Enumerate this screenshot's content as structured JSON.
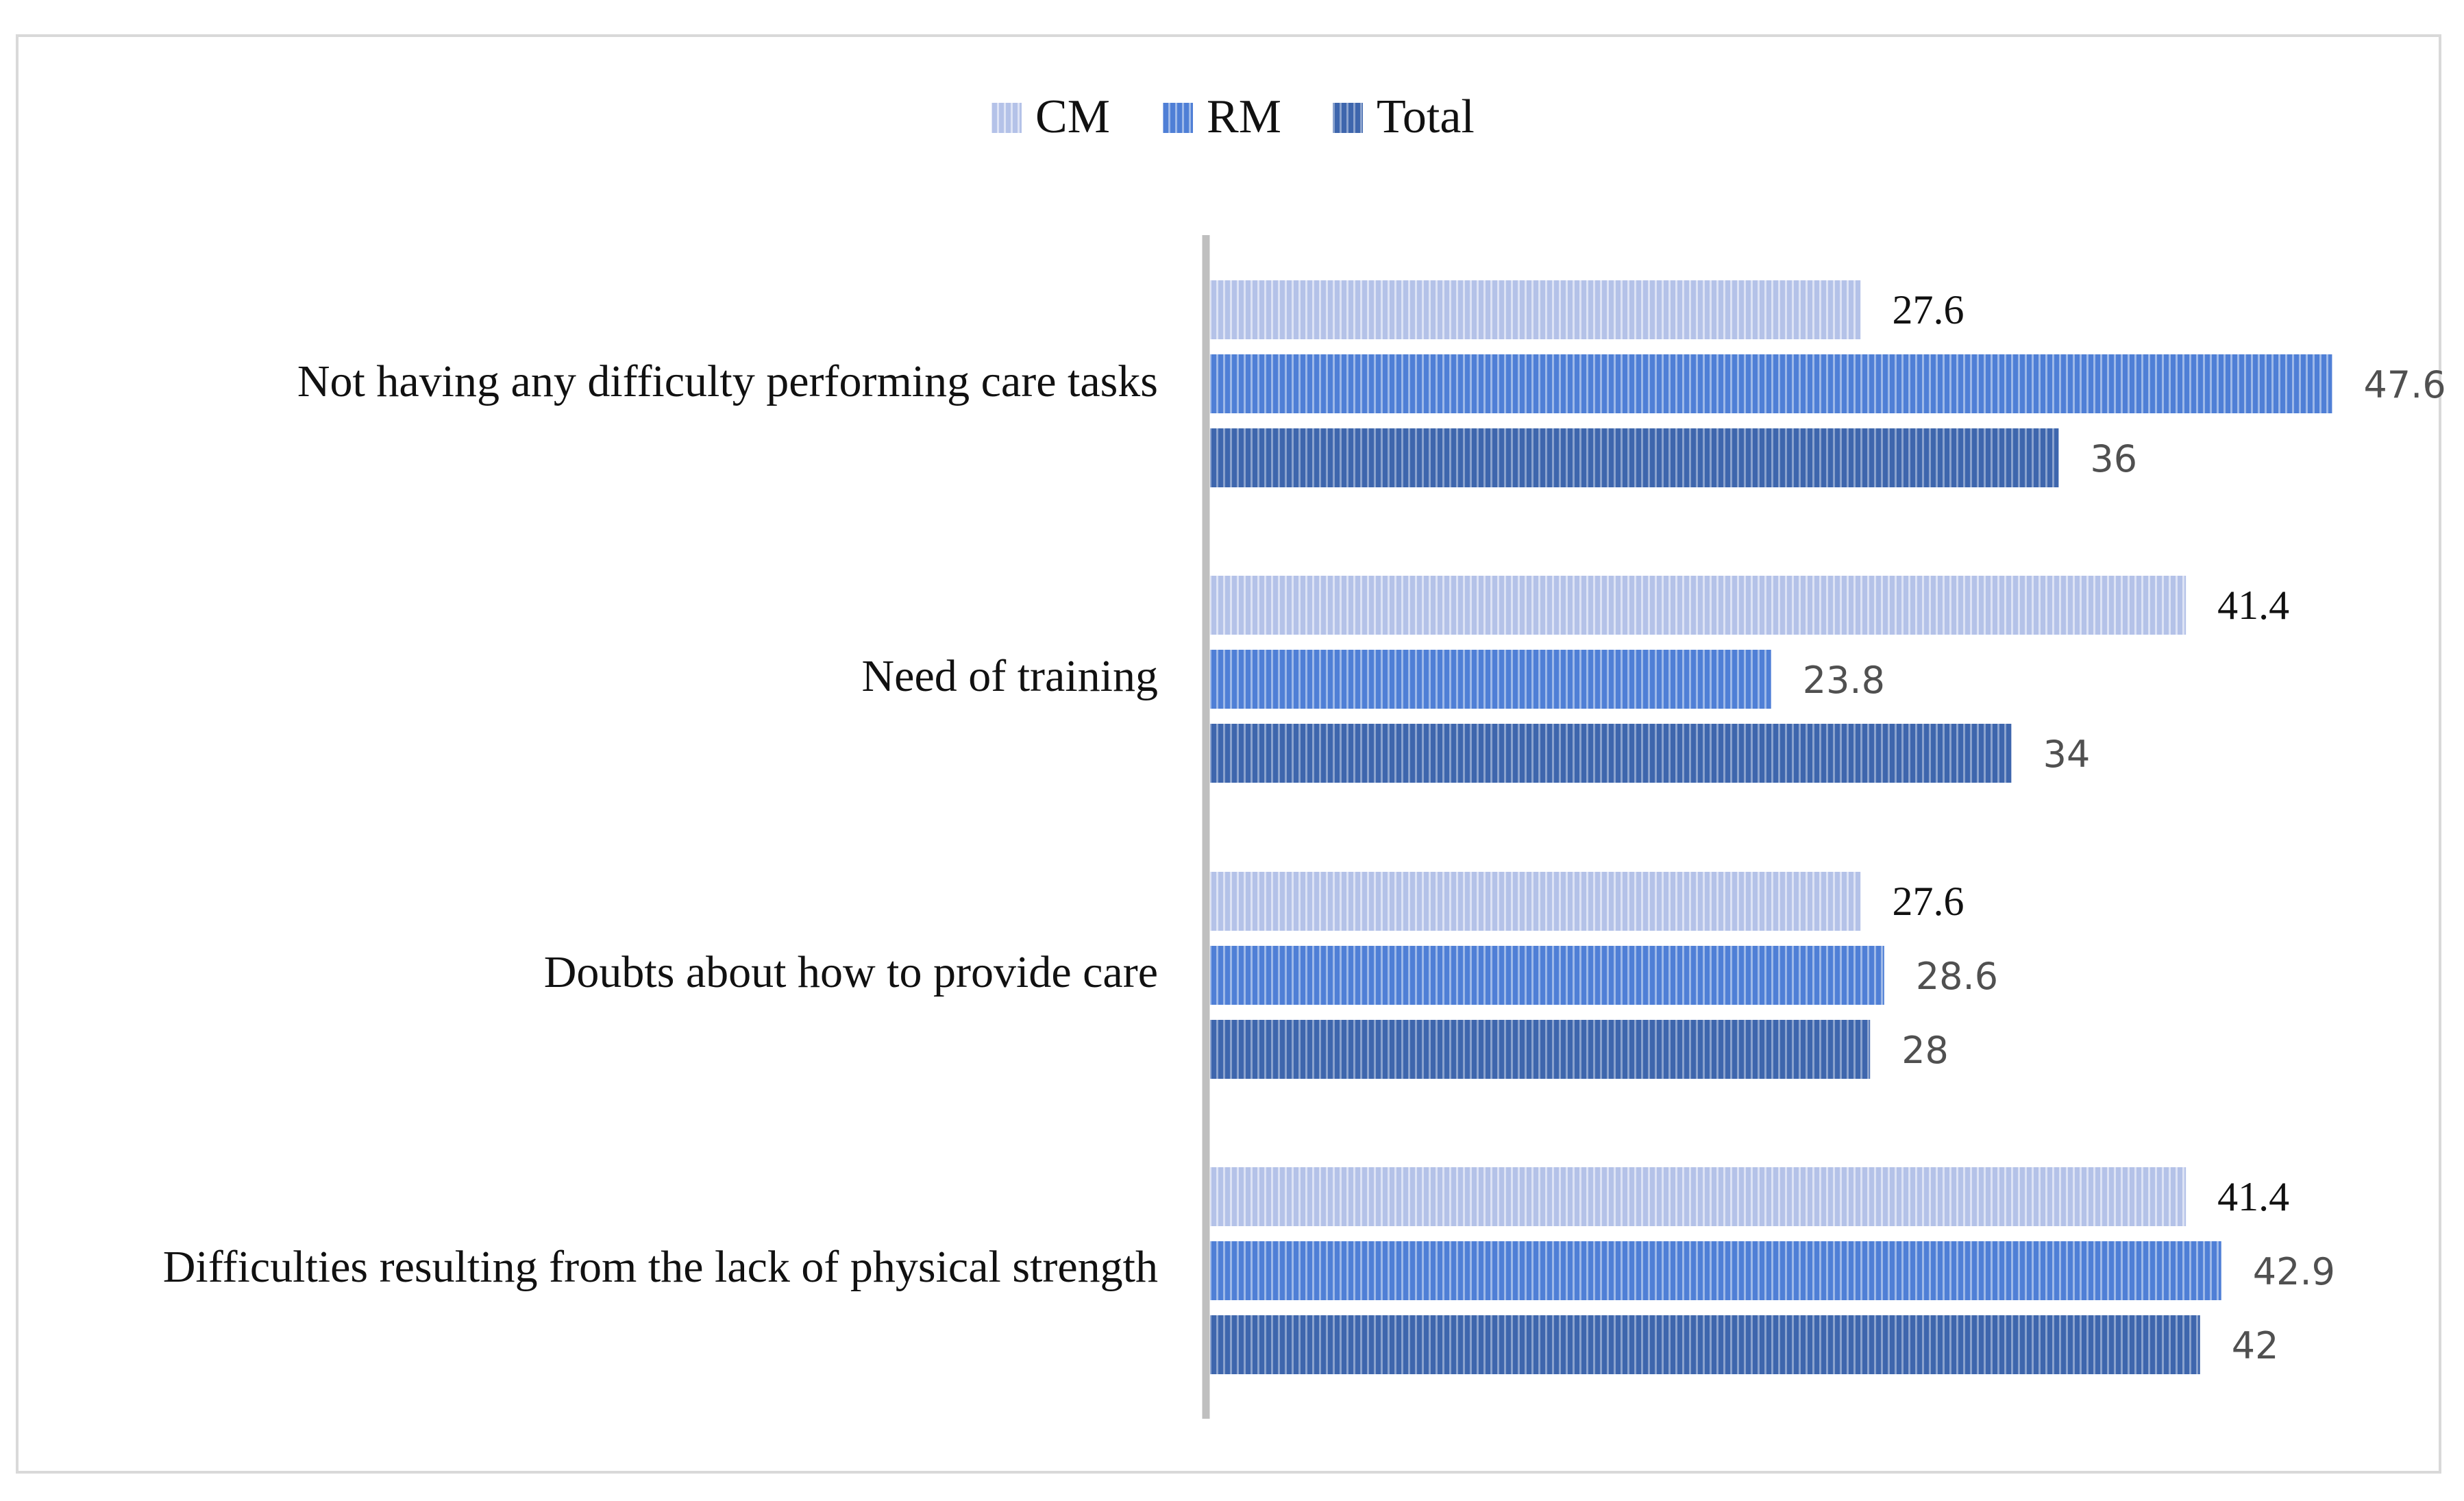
{
  "colors": {
    "CM": "#b4c2e8",
    "RM": "#4f7fd6",
    "Total": "#3e66ad",
    "axis": "#bfbfbf",
    "frame": "#d9d9d9"
  },
  "chart_data": {
    "type": "bar",
    "orientation": "horizontal",
    "title": "",
    "xlabel": "",
    "ylabel": "",
    "xlim": [
      0,
      50
    ],
    "grid": false,
    "legend_position": "top-center",
    "categories": [
      "Not having any difficulty performing care tasks",
      "Need of training",
      "Doubts about how to provide care",
      "Difficulties resulting from the lack of physical strength"
    ],
    "series": [
      {
        "name": "CM",
        "values": [
          27.6,
          41.4,
          27.6,
          41.4
        ],
        "labels": [
          "27.6",
          "41.4",
          "27.6",
          "41.4"
        ]
      },
      {
        "name": "RM",
        "values": [
          47.6,
          23.8,
          28.6,
          42.9
        ],
        "labels": [
          "47.6",
          "23.8",
          "28.6",
          "42.9"
        ]
      },
      {
        "name": "Total",
        "values": [
          36,
          34,
          28,
          42
        ],
        "labels": [
          "36",
          "34",
          "28",
          "42"
        ]
      }
    ]
  }
}
